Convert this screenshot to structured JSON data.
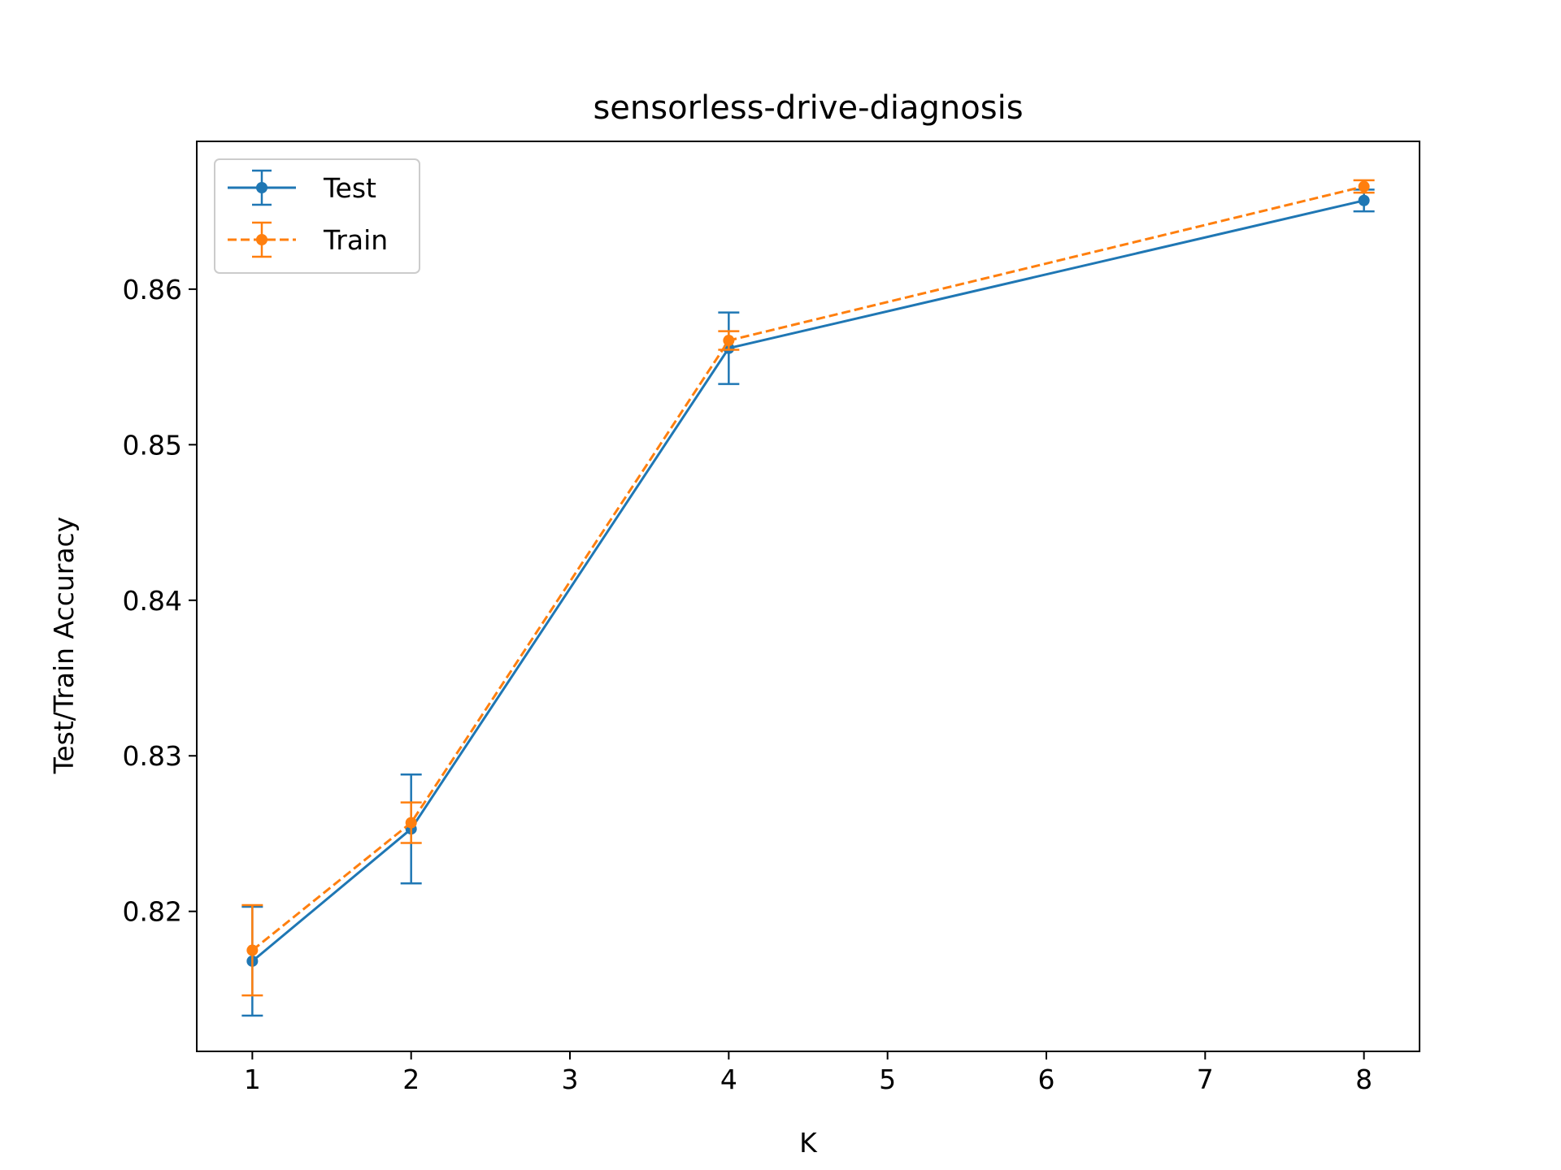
{
  "chart_data": {
    "type": "line",
    "title": "sensorless-drive-diagnosis",
    "xlabel": "K",
    "ylabel": "Test/Train Accuracy",
    "x_ticks": [
      1,
      2,
      3,
      4,
      5,
      6,
      7,
      8
    ],
    "y_ticks": [
      0.82,
      0.83,
      0.84,
      0.85,
      0.86
    ],
    "x_tick_labels": [
      "1",
      "2",
      "3",
      "4",
      "5",
      "6",
      "7",
      "8"
    ],
    "y_tick_labels": [
      "0.82",
      "0.83",
      "0.84",
      "0.85",
      "0.86"
    ],
    "xlim": [
      0.65,
      8.35
    ],
    "ylim": [
      0.811,
      0.8695
    ],
    "grid": false,
    "legend_position": "top-left",
    "series": [
      {
        "name": "Test",
        "color": "#1f77b4",
        "line_style": "solid",
        "marker": "circle",
        "points": [
          {
            "x": 1,
            "y": 0.8168,
            "err": 0.0035
          },
          {
            "x": 2,
            "y": 0.8253,
            "err": 0.0035
          },
          {
            "x": 4,
            "y": 0.8562,
            "err": 0.0023
          },
          {
            "x": 8,
            "y": 0.8657,
            "err": 0.0007
          }
        ]
      },
      {
        "name": "Train",
        "color": "#ff7f0e",
        "line_style": "dashed",
        "marker": "circle",
        "points": [
          {
            "x": 1,
            "y": 0.8175,
            "err": 0.0029
          },
          {
            "x": 2,
            "y": 0.8257,
            "err": 0.0013
          },
          {
            "x": 4,
            "y": 0.8567,
            "err": 0.0006
          },
          {
            "x": 8,
            "y": 0.8666,
            "err": 0.0004
          }
        ]
      }
    ]
  }
}
